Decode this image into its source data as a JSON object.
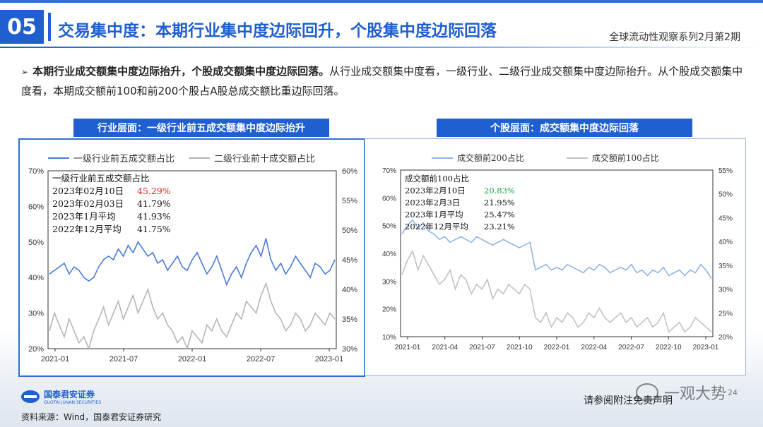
{
  "header": {
    "section_number": "05",
    "title": "交易集中度：本期行业集中度边际回升，个股集中度边际回落",
    "series_name": "全球流动性观察系列2月第2期"
  },
  "bullet": {
    "bold_lead": "本期行业成交额集中度边际抬升，个股成交额集中度边际回落。",
    "text": "从行业成交额集中度看，一级行业、二级行业成交额集中度边际抬升。从个股成交额集中度看，本期成交额前100和前200个股占A股总成交额比重边际回落。"
  },
  "left_panel": {
    "title": "行业层面：一级行业前五成交额集中度边际抬升",
    "legend": [
      "一级行业前五成交额占比",
      "二级行业前十成交额占比"
    ],
    "annotation": {
      "heading": "一级行业前五成交额占比",
      "rows": [
        {
          "label": "2023年02月10日",
          "value": "45.29%",
          "highlight": true
        },
        {
          "label": "2023年02月03日",
          "value": "41.79%",
          "highlight": false
        },
        {
          "label": "2023年1月平均",
          "value": "41.93%",
          "highlight": false
        },
        {
          "label": "2022年12月平均",
          "value": "41.75%",
          "highlight": false
        }
      ]
    }
  },
  "right_panel": {
    "title": "个股层面：成交额集中度边际回落",
    "legend": [
      "成交额前200占比",
      "成交额前100占比"
    ],
    "annotation": {
      "heading": "成交额前100占比",
      "rows": [
        {
          "label": "2023年2月10日",
          "value": "20.83%",
          "highlight": true
        },
        {
          "label": "2023年2月3日",
          "value": "21.95%",
          "highlight": false
        },
        {
          "label": "2023年1月平均",
          "value": "25.47%",
          "highlight": false
        },
        {
          "label": "2022年12月平均",
          "value": "23.21%",
          "highlight": false
        }
      ]
    }
  },
  "colors": {
    "brand_blue": "#1f5fd0",
    "left_series_1": "#4a7bd9",
    "left_series_2": "#b5b5b5",
    "right_series_1": "#8fb3e6",
    "right_series_2": "#c2c2c2",
    "highlight_red": "#e01f1f",
    "highlight_green": "#1aa34a"
  },
  "footer": {
    "logo_cn": "国泰君安证券",
    "logo_en": "GUOTAI JUNAN SECURITIES",
    "source": "资料来源：Wind，国泰君安证券研究",
    "disclaimer": "请参阅附注免责声明",
    "watermark": "一观大势",
    "page_number": "24"
  },
  "chart_data": [
    {
      "type": "line",
      "series": [
        {
          "name": "一级行业前五成交额占比",
          "axis": "left",
          "values": [
            41,
            42,
            43,
            44,
            41,
            43,
            42,
            40,
            39,
            40,
            43,
            45,
            46,
            45,
            48,
            46,
            49,
            47,
            50,
            48,
            46,
            47,
            44,
            45,
            42,
            44,
            46,
            43,
            42,
            45,
            47,
            44,
            41,
            43,
            46,
            42,
            38,
            41,
            43,
            40,
            44,
            47,
            49,
            46,
            51,
            45,
            42,
            44,
            41,
            43,
            46,
            44,
            42,
            40,
            44,
            43,
            41,
            42,
            45
          ]
        },
        {
          "name": "二级行业前十成交额占比",
          "axis": "right",
          "values": [
            33,
            36,
            34,
            32,
            35,
            33,
            31,
            32,
            30,
            33,
            35,
            37,
            34,
            36,
            38,
            35,
            37,
            39,
            36,
            38,
            40,
            37,
            35,
            36,
            34,
            33,
            31,
            32,
            30,
            33,
            32,
            31,
            34,
            33,
            35,
            33,
            32,
            34,
            36,
            35,
            38,
            37,
            36,
            39,
            41,
            38,
            36,
            35,
            33,
            34,
            36,
            35,
            33,
            34,
            36,
            35,
            34,
            36,
            35
          ]
        }
      ],
      "x_tick_labels": [
        "2021-01",
        "2021-07",
        "2022-01",
        "2022-07",
        "2023-01"
      ],
      "y_left_ticks": [
        "20%",
        "30%",
        "40%",
        "50%",
        "60%",
        "70%"
      ],
      "y_left_range": [
        20,
        70
      ],
      "y_right_ticks": [
        "30%",
        "35%",
        "40%",
        "45%",
        "50%",
        "55%",
        "60%"
      ],
      "y_right_range": [
        30,
        60
      ],
      "legend_placement": "top"
    },
    {
      "type": "line",
      "series": [
        {
          "name": "成交额前200占比",
          "axis": "left",
          "values": [
            47,
            50,
            52,
            49,
            51,
            48,
            47,
            45,
            46,
            44,
            45,
            46,
            45,
            44,
            46,
            45,
            44,
            43,
            44,
            45,
            44,
            43,
            42,
            43,
            44,
            34,
            35,
            36,
            34,
            35,
            34,
            36,
            35,
            34,
            33,
            35,
            34,
            36,
            35,
            33,
            34,
            35,
            34,
            36,
            33,
            34,
            32,
            34,
            33,
            35,
            32,
            33,
            34,
            32,
            34,
            33,
            36,
            34,
            31
          ]
        },
        {
          "name": "成交额前100占比",
          "axis": "right",
          "values": [
            33,
            36,
            38,
            34,
            37,
            35,
            33,
            31,
            32,
            34,
            30,
            33,
            32,
            29,
            31,
            30,
            32,
            28,
            30,
            29,
            31,
            30,
            29,
            31,
            30,
            24,
            23,
            25,
            22,
            24,
            23,
            25,
            24,
            22,
            23,
            25,
            24,
            26,
            24,
            23,
            24,
            25,
            23,
            24,
            22,
            23,
            24,
            22,
            23,
            25,
            21,
            22,
            23,
            21,
            22,
            24,
            23,
            22,
            21
          ]
        }
      ],
      "x_tick_labels": [
        "2021-01",
        "2021-04",
        "2021-07",
        "2021-10",
        "2022-01",
        "2022-04",
        "2022-07",
        "2022-10",
        "2023-01"
      ],
      "y_left_ticks": [
        "10%",
        "20%",
        "30%",
        "40%",
        "50%",
        "60%",
        "70%"
      ],
      "y_left_range": [
        10,
        70
      ],
      "y_right_ticks": [
        "20%",
        "25%",
        "30%",
        "35%",
        "40%",
        "45%",
        "50%",
        "55%"
      ],
      "y_right_range": [
        20,
        55
      ],
      "legend_placement": "top"
    }
  ]
}
